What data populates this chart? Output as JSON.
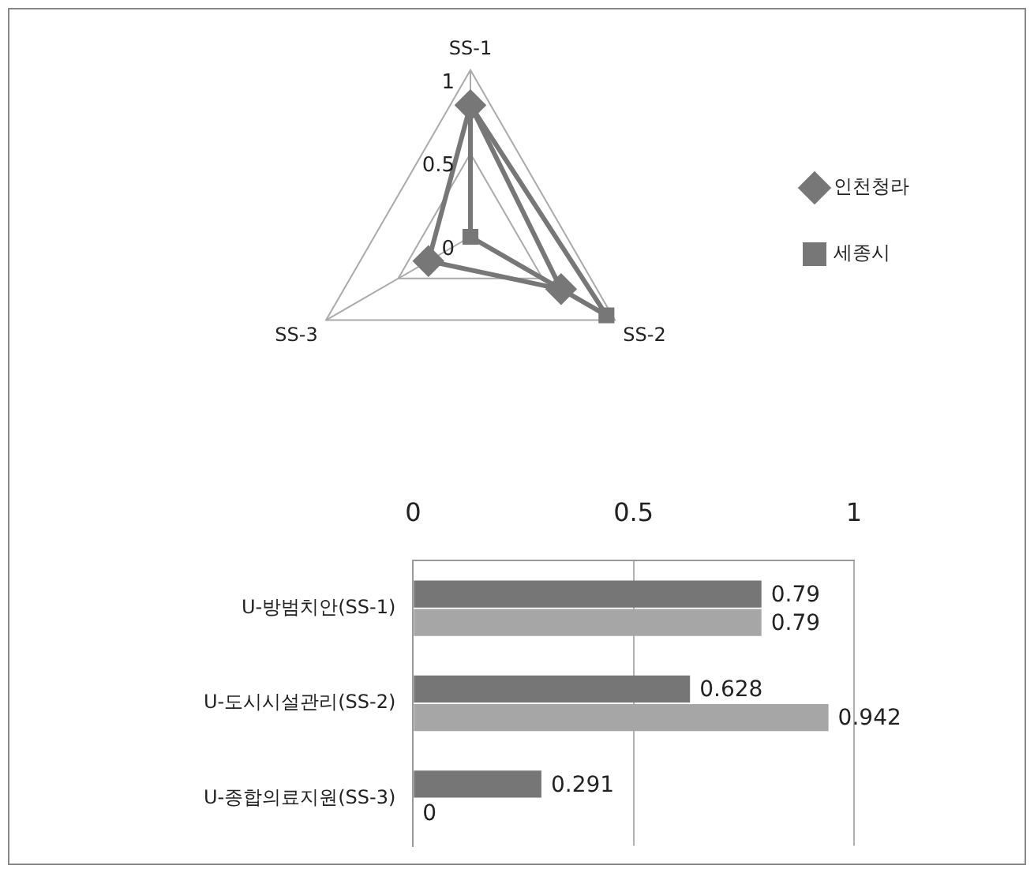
{
  "chart_data": [
    {
      "type": "radar",
      "categories": [
        "SS-1",
        "SS-2",
        "SS-3"
      ],
      "ylim": [
        0,
        1
      ],
      "yticks": [
        0,
        0.5,
        1
      ],
      "grid": true,
      "legend": "right",
      "series": [
        {
          "name": "인천청라",
          "color": "#777777",
          "marker": "diamond",
          "values": [
            0.79,
            0.628,
            0.291
          ]
        },
        {
          "name": "세종시",
          "color": "#777777",
          "marker": "square",
          "values": [
            0.79,
            0.942,
            0
          ]
        }
      ]
    },
    {
      "type": "bar",
      "orientation": "horizontal",
      "categories": [
        "U-방범치안(SS-1)",
        "U-도시시설관리(SS-2)",
        "U-종합의료지원(SS-3)"
      ],
      "xlim": [
        0,
        1
      ],
      "xticks": [
        0,
        0.5,
        1
      ],
      "grid": "x",
      "data_labels": true,
      "series": [
        {
          "color": "#767676",
          "values": [
            0.79,
            0.628,
            0.291
          ]
        },
        {
          "color": "#a6a6a6",
          "values": [
            0.79,
            0.942,
            0
          ]
        }
      ]
    }
  ]
}
